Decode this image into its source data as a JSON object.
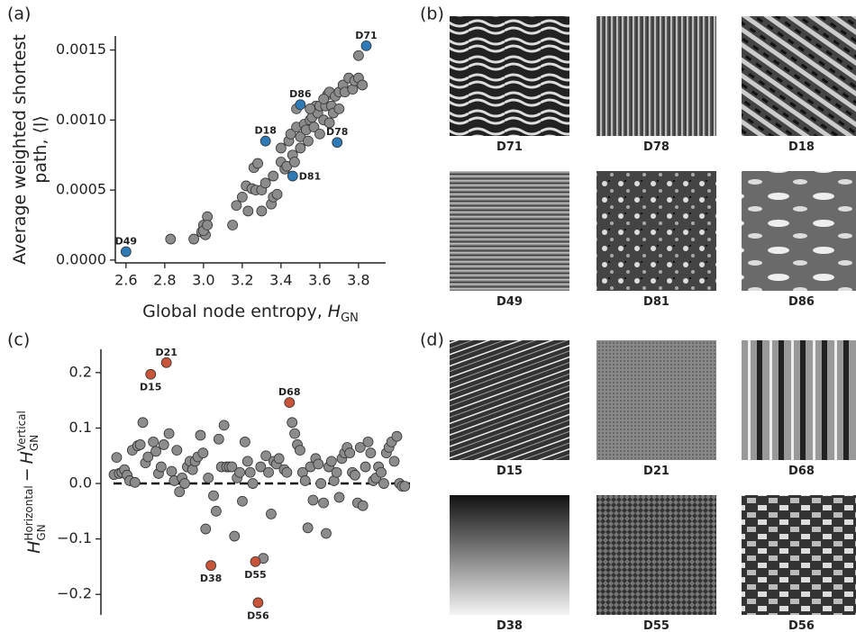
{
  "chart_data": [
    {
      "type": "scatter",
      "panel": "(a)",
      "x_label": {
        "text": "Global node entropy, ",
        "symbol": "H",
        "subscript": "GN"
      },
      "y_label": [
        "Average weighted shortest",
        "path, ⟨l⟩"
      ],
      "xlim": [
        2.545,
        3.94
      ],
      "ylim": [
        -2e-05,
        0.0016
      ],
      "xticks": [
        2.6,
        2.8,
        {
          "value": 3,
          "label": "3.0"
        },
        3.2,
        3.4,
        3.6,
        3.8
      ],
      "yticks": [
        {
          "value": 0,
          "label": "0.0000"
        },
        {
          "value": 0.0005,
          "label": "0.0005"
        },
        {
          "value": 0.001,
          "label": "0.0010"
        },
        {
          "value": 0.0015,
          "label": "0.0015"
        }
      ],
      "series": [
        {
          "color": "#8c8c8c",
          "x": [
            2.83,
            2.95,
            2.99,
            3.0,
            3.01,
            3.02,
            3.0,
            3.02,
            3.15,
            3.17,
            3.2,
            3.22,
            3.23,
            3.25,
            3.26,
            3.28,
            3.27,
            3.3,
            3.3,
            3.32,
            3.35,
            3.36,
            3.38,
            3.36,
            3.4,
            3.4,
            3.42,
            3.43,
            3.44,
            3.45,
            3.46,
            3.47,
            3.48,
            3.5,
            3.5,
            3.52,
            3.53,
            3.54,
            3.55,
            3.56,
            3.57,
            3.58,
            3.59,
            3.6,
            3.6,
            3.62,
            3.63,
            3.64,
            3.65,
            3.66,
            3.67,
            3.68,
            3.7,
            3.72,
            3.73,
            3.75,
            3.77,
            3.78,
            3.8,
            3.82,
            3.8,
            3.55,
            3.48,
            3.65,
            3.7,
            3.62
          ],
          "values": [
            0.00015,
            0.00015,
            0.0002,
            0.00025,
            0.00018,
            0.00031,
            0.00021,
            0.00025,
            0.00025,
            0.00039,
            0.00045,
            0.00053,
            0.00035,
            0.00051,
            0.00066,
            0.00069,
            0.0005,
            0.0005,
            0.00035,
            0.00055,
            0.0004,
            0.00045,
            0.00047,
            0.0006,
            0.0007,
            0.0008,
            0.00065,
            0.00067,
            0.00085,
            0.0009,
            0.00075,
            0.0007,
            0.00095,
            0.0008,
            0.00088,
            0.00097,
            0.00093,
            0.00085,
            0.001,
            0.00102,
            0.00095,
            0.0011,
            0.00105,
            0.0009,
            0.0011,
            0.001,
            0.0011,
            0.00118,
            0.0012,
            0.0011,
            0.00105,
            0.00117,
            0.0012,
            0.00125,
            0.0012,
            0.0013,
            0.00122,
            0.00128,
            0.0013,
            0.00125,
            0.00146,
            0.00108,
            0.00108,
            0.00098,
            0.00108,
            0.00115
          ]
        },
        {
          "color": "#2e7ab6",
          "x": [
            2.6,
            3.32,
            3.5,
            3.69,
            3.46,
            3.84
          ],
          "values": [
            6e-05,
            0.00085,
            0.00111,
            0.00084,
            0.0006,
            0.00153
          ],
          "labels": [
            "D49",
            "D18",
            "D86",
            "D78",
            "D81",
            "D71"
          ]
        }
      ]
    },
    {
      "type": "scatter",
      "panel": "(c)",
      "y_label": {
        "operator": "−",
        "terms": [
          {
            "symbol": "H",
            "subscript": "GN",
            "superscript": "Horizontal"
          },
          {
            "symbol": "H",
            "subscript": "GN",
            "superscript": "Vertical"
          }
        ]
      },
      "xlim": [
        -4,
        114
      ],
      "ylim": [
        -0.237,
        0.242
      ],
      "yticks": [
        {
          "value": -0.2,
          "label": "−0.2"
        },
        {
          "value": -0.1,
          "label": "−0.1"
        },
        {
          "value": 0,
          "label": "0.0"
        },
        0.1,
        0.2
      ],
      "reference_line": 0,
      "series": [
        {
          "color": "#8c8c8c",
          "x": [
            1,
            2,
            3,
            4,
            5,
            6,
            7,
            8,
            9,
            10,
            11,
            12,
            13,
            14,
            16,
            17,
            18,
            19,
            20,
            22,
            23,
            24,
            25,
            26,
            27,
            28,
            29,
            30,
            31,
            32,
            33,
            34,
            35,
            36,
            37,
            39,
            40,
            41,
            42,
            43,
            44,
            45,
            46,
            47,
            48,
            49,
            50,
            51,
            52,
            53,
            54,
            57,
            58,
            59,
            60,
            61,
            62,
            63,
            64,
            66,
            67,
            69,
            70,
            71,
            72,
            73,
            74,
            75,
            76,
            77,
            78,
            79,
            80,
            81,
            82,
            83,
            84,
            85,
            86,
            87,
            88,
            89,
            90,
            91,
            92,
            93,
            94,
            95,
            96,
            97,
            98,
            99,
            100,
            101,
            102,
            103,
            104,
            105,
            106,
            107,
            108,
            109,
            110,
            111,
            112
          ],
          "values": [
            0.016,
            0.047,
            0.018,
            0.02,
            0.025,
            0.015,
            0.005,
            0.06,
            0.002,
            0.068,
            0.07,
            0.11,
            0.037,
            0.048,
            0.075,
            0.058,
            0.018,
            0.03,
            0.07,
            0.09,
            0.022,
            0.005,
            0.06,
            -0.015,
            0.01,
            0.0,
            0.03,
            0.04,
            0.025,
            0.04,
            0.048,
            0.087,
            0.055,
            -0.082,
            0.01,
            -0.022,
            -0.05,
            0.08,
            0.03,
            0.105,
            0.03,
            0.03,
            0.03,
            -0.095,
            0.01,
            0.02,
            -0.032,
            0.075,
            0.04,
            0.02,
            0.0,
            0.03,
            -0.135,
            0.05,
            0.02,
            -0.055,
            0.04,
            0.035,
            0.045,
            0.025,
            0.02,
            0.11,
            0.09,
            0.07,
            0.06,
            0.02,
            0.005,
            -0.08,
            0.03,
            -0.03,
            0.045,
            0.035,
            0.0,
            -0.035,
            -0.09,
            0.03,
            0.04,
            0.005,
            0.02,
            -0.025,
            0.045,
            0.055,
            0.065,
            0.055,
            0.02,
            0.015,
            -0.035,
            0.065,
            -0.04,
            0.03,
            0.075,
            0.055,
            0.005,
            0.01,
            0.03,
            0.02,
            0.0,
            0.055,
            0.065,
            0.075,
            0.04,
            0.085,
            0.0,
            -0.005,
            -0.005
          ]
        },
        {
          "color": "#c8553a",
          "x": [
            15,
            21,
            38,
            55,
            56,
            68
          ],
          "values": [
            0.197,
            0.218,
            -0.148,
            -0.141,
            -0.215,
            0.146
          ],
          "labels": [
            "D15",
            "D21",
            "D38",
            "D55",
            "D56",
            "D68"
          ]
        }
      ]
    }
  ],
  "texture_panels": [
    {
      "panel": "(b)",
      "labels": [
        "D71",
        "D78",
        "D18",
        "D49",
        "D81",
        "D86"
      ]
    },
    {
      "panel": "(d)",
      "labels": [
        "D15",
        "D21",
        "D68",
        "D38",
        "D55",
        "D56"
      ]
    }
  ]
}
